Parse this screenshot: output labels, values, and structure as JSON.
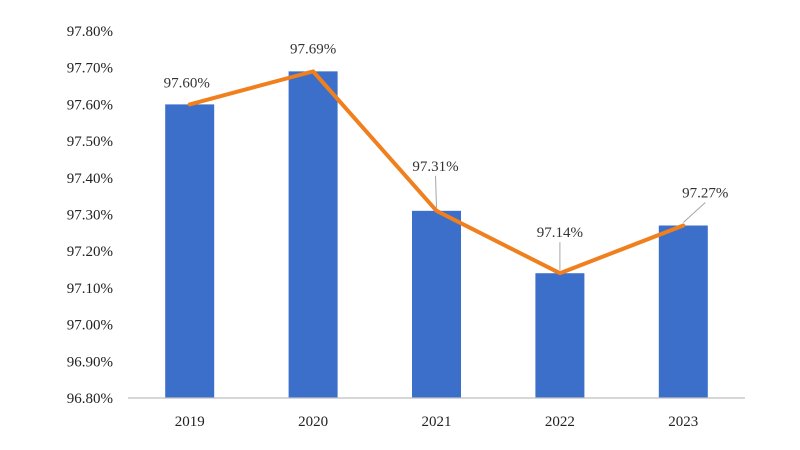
{
  "chart_data": {
    "type": "bar",
    "categories": [
      "2019",
      "2020",
      "2021",
      "2022",
      "2023"
    ],
    "series": [
      {
        "type": "bar",
        "values": [
          97.6,
          97.69,
          97.31,
          97.14,
          97.27
        ]
      },
      {
        "type": "line",
        "values": [
          97.6,
          97.69,
          97.31,
          97.14,
          97.27
        ]
      }
    ],
    "data_labels": [
      "97.60%",
      "97.69%",
      "97.31%",
      "97.14%",
      "97.27%"
    ],
    "ylim": [
      96.8,
      97.8
    ],
    "yticks": [
      96.8,
      96.9,
      97.0,
      97.1,
      97.2,
      97.3,
      97.4,
      97.5,
      97.6,
      97.7,
      97.8
    ],
    "ytick_labels": [
      "96.80%",
      "96.90%",
      "97.00%",
      "97.10%",
      "97.20%",
      "97.30%",
      "97.40%",
      "97.50%",
      "97.60%",
      "97.70%",
      "97.80%"
    ],
    "title": "",
    "xlabel": "",
    "ylabel": "",
    "grid": false,
    "legend": "none",
    "colors": {
      "bar": "#3B6FC9",
      "line": "#F07F1E",
      "axis": "#BFBFBF",
      "leader": "#A6A6A6"
    }
  }
}
